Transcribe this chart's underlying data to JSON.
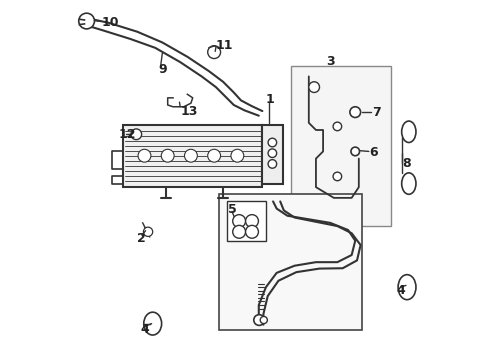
{
  "title": "",
  "bg_color": "#ffffff",
  "fig_width": 4.89,
  "fig_height": 3.6,
  "dpi": 100,
  "line_color": "#333333",
  "text_color": "#222222",
  "font_size": 9
}
